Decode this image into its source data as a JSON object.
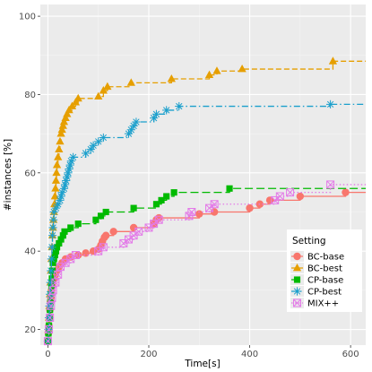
{
  "chart_data": {
    "type": "line",
    "xlabel": "Time[s]",
    "ylabel": "#instances [%]",
    "xlim": [
      -15,
      630
    ],
    "ylim": [
      16,
      103
    ],
    "x_ticks": [
      0,
      200,
      400,
      600
    ],
    "y_ticks": [
      20,
      40,
      60,
      80,
      100
    ],
    "grid": true,
    "legend": {
      "title": "Setting",
      "position": "bottom-right"
    },
    "series": [
      {
        "name": "BC-base",
        "color": "#F8766D",
        "marker": "circle",
        "dash": "solid",
        "points": [
          [
            0,
            17
          ],
          [
            1,
            19
          ],
          [
            2,
            21
          ],
          [
            3,
            23
          ],
          [
            4,
            25
          ],
          [
            5,
            27
          ],
          [
            6,
            28
          ],
          [
            7,
            30
          ],
          [
            9,
            31
          ],
          [
            10,
            32
          ],
          [
            12,
            33
          ],
          [
            15,
            34
          ],
          [
            18,
            35
          ],
          [
            22,
            36
          ],
          [
            28,
            37
          ],
          [
            35,
            38
          ],
          [
            45,
            38.5
          ],
          [
            60,
            39
          ],
          [
            75,
            39.5
          ],
          [
            90,
            40
          ],
          [
            100,
            40.5
          ],
          [
            105,
            41.5
          ],
          [
            108,
            42.5
          ],
          [
            112,
            43.5
          ],
          [
            115,
            44
          ],
          [
            130,
            45
          ],
          [
            170,
            46
          ],
          [
            210,
            47
          ],
          [
            215,
            48
          ],
          [
            220,
            48.5
          ],
          [
            300,
            49.5
          ],
          [
            330,
            50
          ],
          [
            400,
            51
          ],
          [
            420,
            52
          ],
          [
            440,
            53
          ],
          [
            500,
            54
          ],
          [
            590,
            55
          ]
        ],
        "line_end": 630
      },
      {
        "name": "BC-best",
        "color": "#E69F00",
        "marker": "triangle",
        "dash": "dashed",
        "points": [
          [
            0,
            17
          ],
          [
            1,
            20
          ],
          [
            2,
            23
          ],
          [
            3,
            26
          ],
          [
            4,
            29
          ],
          [
            5,
            32
          ],
          [
            6,
            35
          ],
          [
            7,
            38
          ],
          [
            8,
            41
          ],
          [
            9,
            44
          ],
          [
            10,
            46
          ],
          [
            11,
            48
          ],
          [
            12,
            50
          ],
          [
            13,
            52
          ],
          [
            14,
            54
          ],
          [
            15,
            56
          ],
          [
            16,
            58
          ],
          [
            17,
            60
          ],
          [
            18,
            62
          ],
          [
            20,
            64
          ],
          [
            22,
            66
          ],
          [
            24,
            68
          ],
          [
            26,
            70
          ],
          [
            28,
            71
          ],
          [
            30,
            72
          ],
          [
            32,
            73
          ],
          [
            35,
            74
          ],
          [
            38,
            75
          ],
          [
            42,
            76
          ],
          [
            48,
            77
          ],
          [
            55,
            78
          ],
          [
            60,
            79
          ],
          [
            100,
            79.5
          ],
          [
            110,
            81
          ],
          [
            118,
            82
          ],
          [
            165,
            83
          ],
          [
            245,
            84
          ],
          [
            320,
            85
          ],
          [
            335,
            86
          ],
          [
            385,
            86.5
          ],
          [
            565,
            88.5
          ]
        ],
        "line_end": 630
      },
      {
        "name": "CP-base",
        "color": "#00BA00",
        "marker": "square",
        "dash": "longdash",
        "points": [
          [
            0,
            17
          ],
          [
            1,
            19
          ],
          [
            2,
            21
          ],
          [
            3,
            23
          ],
          [
            4,
            25
          ],
          [
            5,
            27
          ],
          [
            6,
            29
          ],
          [
            7,
            31
          ],
          [
            8,
            33
          ],
          [
            9,
            35
          ],
          [
            10,
            37
          ],
          [
            12,
            38
          ],
          [
            14,
            39
          ],
          [
            16,
            40
          ],
          [
            18,
            41
          ],
          [
            22,
            42
          ],
          [
            26,
            43
          ],
          [
            30,
            44
          ],
          [
            33,
            45
          ],
          [
            45,
            46
          ],
          [
            60,
            47
          ],
          [
            95,
            48
          ],
          [
            105,
            49
          ],
          [
            115,
            50
          ],
          [
            170,
            51
          ],
          [
            215,
            52
          ],
          [
            225,
            53
          ],
          [
            235,
            54
          ],
          [
            250,
            55
          ],
          [
            360,
            56
          ]
        ],
        "line_end": 630
      },
      {
        "name": "CP-best",
        "color": "#1A9FCC",
        "marker": "asterisk",
        "dash": "dashdot",
        "points": [
          [
            0,
            17
          ],
          [
            1,
            20
          ],
          [
            2,
            23
          ],
          [
            3,
            26
          ],
          [
            4,
            29
          ],
          [
            5,
            32
          ],
          [
            6,
            35
          ],
          [
            7,
            38
          ],
          [
            8,
            41
          ],
          [
            9,
            44
          ],
          [
            10,
            46
          ],
          [
            11,
            48
          ],
          [
            12,
            50
          ],
          [
            16,
            51
          ],
          [
            20,
            52
          ],
          [
            24,
            53
          ],
          [
            26,
            54
          ],
          [
            28,
            55
          ],
          [
            32,
            56
          ],
          [
            34,
            57
          ],
          [
            36,
            58
          ],
          [
            38,
            59
          ],
          [
            40,
            60
          ],
          [
            42,
            61
          ],
          [
            44,
            62
          ],
          [
            46,
            63
          ],
          [
            50,
            64
          ],
          [
            75,
            65
          ],
          [
            85,
            66
          ],
          [
            90,
            67
          ],
          [
            100,
            68
          ],
          [
            110,
            69
          ],
          [
            160,
            70
          ],
          [
            165,
            71
          ],
          [
            170,
            72
          ],
          [
            175,
            73
          ],
          [
            210,
            74
          ],
          [
            215,
            75
          ],
          [
            235,
            76
          ],
          [
            260,
            77
          ],
          [
            560,
            77.5
          ]
        ],
        "line_end": 630
      },
      {
        "name": "MIX++",
        "color": "#E37AE8",
        "marker": "boxx",
        "dash": "dotted",
        "points": [
          [
            0,
            17
          ],
          [
            2,
            20
          ],
          [
            4,
            23
          ],
          [
            6,
            26
          ],
          [
            8,
            28
          ],
          [
            10,
            30
          ],
          [
            15,
            32
          ],
          [
            20,
            34
          ],
          [
            25,
            36
          ],
          [
            35,
            37
          ],
          [
            45,
            38
          ],
          [
            55,
            39
          ],
          [
            100,
            40
          ],
          [
            110,
            41
          ],
          [
            150,
            42
          ],
          [
            160,
            43
          ],
          [
            170,
            44
          ],
          [
            180,
            45
          ],
          [
            200,
            46
          ],
          [
            210,
            47
          ],
          [
            220,
            48
          ],
          [
            280,
            49
          ],
          [
            285,
            50
          ],
          [
            320,
            51
          ],
          [
            330,
            52
          ],
          [
            450,
            53
          ],
          [
            460,
            54
          ],
          [
            480,
            55
          ],
          [
            560,
            57
          ]
        ],
        "line_end": 630
      }
    ]
  }
}
